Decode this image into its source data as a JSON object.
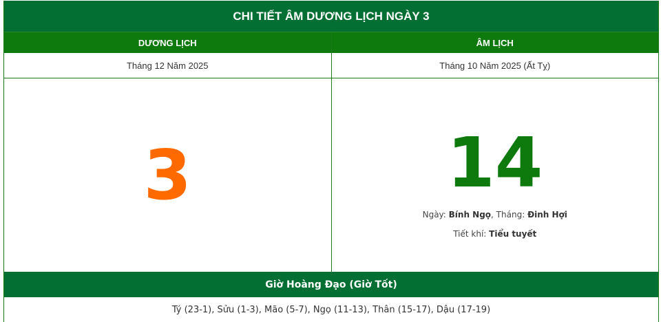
{
  "title": "CHI TIẾT ÂM DƯƠNG LỊCH NGÀY 3",
  "columns": {
    "solar": "DƯƠNG LỊCH",
    "lunar": "ÂM LỊCH"
  },
  "solar": {
    "month_year": "Tháng 12 Năm 2025",
    "day": "3"
  },
  "lunar": {
    "month_year": "Tháng 10 Năm 2025 (Ất Tỵ)",
    "day": "14",
    "day_label": "Ngày:",
    "day_can_chi": "Bính Ngọ",
    "month_label": ", Tháng:",
    "month_can_chi": "Đinh Hợi",
    "tiet_khi_label": "Tiết khí:",
    "tiet_khi": "Tiểu tuyết"
  },
  "good_hours": {
    "heading": "Giờ Hoàng Đạo (Giờ Tốt)",
    "list": "Tý (23-1), Sửu (1-3), Mão (5-7), Ngọ (11-13), Thân (15-17), Dậu (17-19)"
  },
  "colors": {
    "title_bg": "#036f32",
    "header_bg": "#0e7a0e",
    "solar_day": "#ff6a00",
    "lunar_day": "#0e7a0e"
  }
}
